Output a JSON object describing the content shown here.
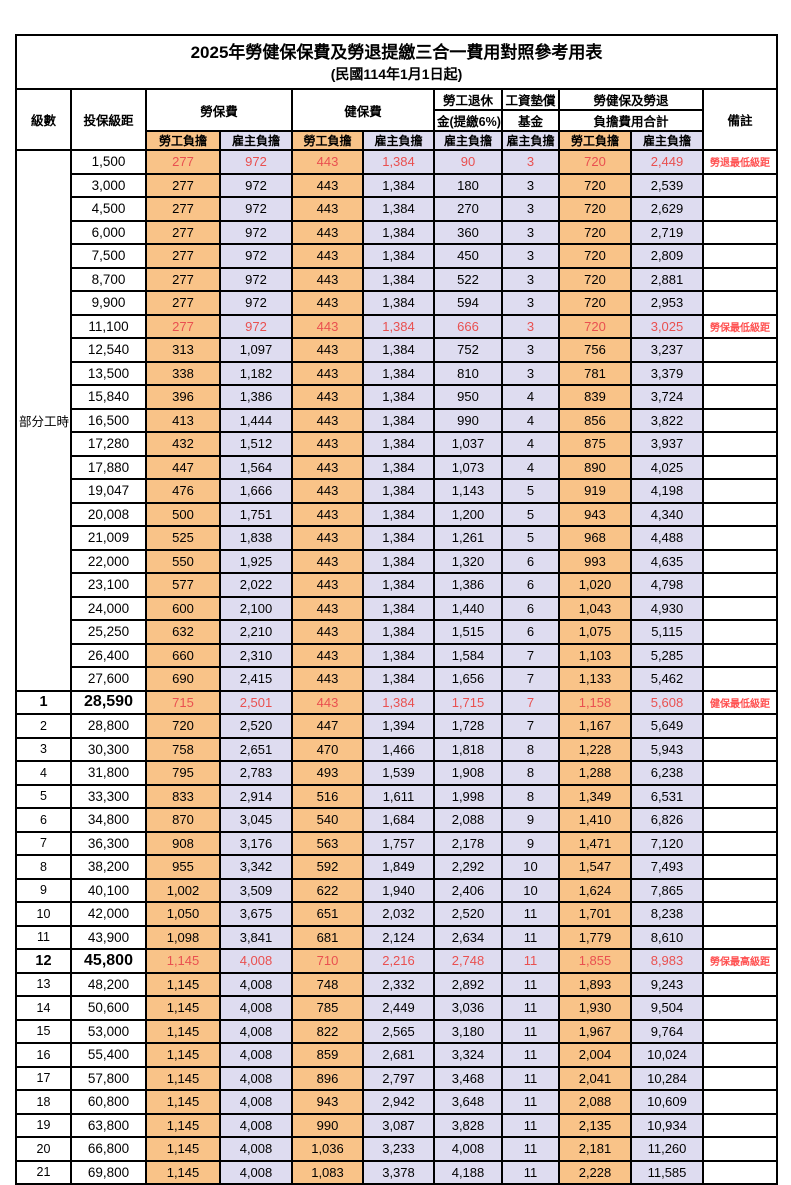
{
  "title": "2025年勞健保保費及勞退提繳三合一費用對照參考用表",
  "subtitle": "(民國114年1月1日起)",
  "colors": {
    "employee_bg": "#F9C388",
    "employer_bg": "#DEDCF0",
    "highlight_text": "#E95050",
    "remark_text": "#FF5151",
    "border": "#000000"
  },
  "header": {
    "level": "級數",
    "bracket": "投保級距",
    "labor_ins": "勞保費",
    "health_ins": "健保費",
    "pension_line1": "勞工退休",
    "pension_line2": "金(提繳6%)",
    "wage_fund_line1": "工資墊償",
    "wage_fund_line2": "基金",
    "total_line1": "勞健保及勞退",
    "total_line2": "負擔費用合計",
    "remark": "備註",
    "employee": "勞工負擔",
    "employer": "雇主負擔"
  },
  "part_time_label": "部分工時",
  "part_time_rowspan": 23,
  "rows": [
    {
      "level": "",
      "bracket": "1,500",
      "values": [
        "277",
        "972",
        "443",
        "1,384",
        "90",
        "3",
        "720",
        "2,449"
      ],
      "remark": "勞退最低級距",
      "red": true,
      "big": false
    },
    {
      "level": "",
      "bracket": "3,000",
      "values": [
        "277",
        "972",
        "443",
        "1,384",
        "180",
        "3",
        "720",
        "2,539"
      ],
      "remark": "",
      "red": false,
      "big": false
    },
    {
      "level": "",
      "bracket": "4,500",
      "values": [
        "277",
        "972",
        "443",
        "1,384",
        "270",
        "3",
        "720",
        "2,629"
      ],
      "remark": "",
      "red": false,
      "big": false
    },
    {
      "level": "",
      "bracket": "6,000",
      "values": [
        "277",
        "972",
        "443",
        "1,384",
        "360",
        "3",
        "720",
        "2,719"
      ],
      "remark": "",
      "red": false,
      "big": false
    },
    {
      "level": "",
      "bracket": "7,500",
      "values": [
        "277",
        "972",
        "443",
        "1,384",
        "450",
        "3",
        "720",
        "2,809"
      ],
      "remark": "",
      "red": false,
      "big": false
    },
    {
      "level": "",
      "bracket": "8,700",
      "values": [
        "277",
        "972",
        "443",
        "1,384",
        "522",
        "3",
        "720",
        "2,881"
      ],
      "remark": "",
      "red": false,
      "big": false
    },
    {
      "level": "",
      "bracket": "9,900",
      "values": [
        "277",
        "972",
        "443",
        "1,384",
        "594",
        "3",
        "720",
        "2,953"
      ],
      "remark": "",
      "red": false,
      "big": false
    },
    {
      "level": "",
      "bracket": "11,100",
      "values": [
        "277",
        "972",
        "443",
        "1,384",
        "666",
        "3",
        "720",
        "3,025"
      ],
      "remark": "勞保最低級距",
      "red": true,
      "big": false
    },
    {
      "level": "",
      "bracket": "12,540",
      "values": [
        "313",
        "1,097",
        "443",
        "1,384",
        "752",
        "3",
        "756",
        "3,237"
      ],
      "remark": "",
      "red": false,
      "big": false
    },
    {
      "level": "",
      "bracket": "13,500",
      "values": [
        "338",
        "1,182",
        "443",
        "1,384",
        "810",
        "3",
        "781",
        "3,379"
      ],
      "remark": "",
      "red": false,
      "big": false
    },
    {
      "level": "",
      "bracket": "15,840",
      "values": [
        "396",
        "1,386",
        "443",
        "1,384",
        "950",
        "4",
        "839",
        "3,724"
      ],
      "remark": "",
      "red": false,
      "big": false
    },
    {
      "level": "",
      "bracket": "16,500",
      "values": [
        "413",
        "1,444",
        "443",
        "1,384",
        "990",
        "4",
        "856",
        "3,822"
      ],
      "remark": "",
      "red": false,
      "big": false
    },
    {
      "level": "",
      "bracket": "17,280",
      "values": [
        "432",
        "1,512",
        "443",
        "1,384",
        "1,037",
        "4",
        "875",
        "3,937"
      ],
      "remark": "",
      "red": false,
      "big": false
    },
    {
      "level": "",
      "bracket": "17,880",
      "values": [
        "447",
        "1,564",
        "443",
        "1,384",
        "1,073",
        "4",
        "890",
        "4,025"
      ],
      "remark": "",
      "red": false,
      "big": false
    },
    {
      "level": "",
      "bracket": "19,047",
      "values": [
        "476",
        "1,666",
        "443",
        "1,384",
        "1,143",
        "5",
        "919",
        "4,198"
      ],
      "remark": "",
      "red": false,
      "big": false
    },
    {
      "level": "",
      "bracket": "20,008",
      "values": [
        "500",
        "1,751",
        "443",
        "1,384",
        "1,200",
        "5",
        "943",
        "4,340"
      ],
      "remark": "",
      "red": false,
      "big": false
    },
    {
      "level": "",
      "bracket": "21,009",
      "values": [
        "525",
        "1,838",
        "443",
        "1,384",
        "1,261",
        "5",
        "968",
        "4,488"
      ],
      "remark": "",
      "red": false,
      "big": false
    },
    {
      "level": "",
      "bracket": "22,000",
      "values": [
        "550",
        "1,925",
        "443",
        "1,384",
        "1,320",
        "6",
        "993",
        "4,635"
      ],
      "remark": "",
      "red": false,
      "big": false
    },
    {
      "level": "",
      "bracket": "23,100",
      "values": [
        "577",
        "2,022",
        "443",
        "1,384",
        "1,386",
        "6",
        "1,020",
        "4,798"
      ],
      "remark": "",
      "red": false,
      "big": false
    },
    {
      "level": "",
      "bracket": "24,000",
      "values": [
        "600",
        "2,100",
        "443",
        "1,384",
        "1,440",
        "6",
        "1,043",
        "4,930"
      ],
      "remark": "",
      "red": false,
      "big": false
    },
    {
      "level": "",
      "bracket": "25,250",
      "values": [
        "632",
        "2,210",
        "443",
        "1,384",
        "1,515",
        "6",
        "1,075",
        "5,115"
      ],
      "remark": "",
      "red": false,
      "big": false
    },
    {
      "level": "",
      "bracket": "26,400",
      "values": [
        "660",
        "2,310",
        "443",
        "1,384",
        "1,584",
        "7",
        "1,103",
        "5,285"
      ],
      "remark": "",
      "red": false,
      "big": false
    },
    {
      "level": "",
      "bracket": "27,600",
      "values": [
        "690",
        "2,415",
        "443",
        "1,384",
        "1,656",
        "7",
        "1,133",
        "5,462"
      ],
      "remark": "",
      "red": false,
      "big": false
    },
    {
      "level": "1",
      "bracket": "28,590",
      "values": [
        "715",
        "2,501",
        "443",
        "1,384",
        "1,715",
        "7",
        "1,158",
        "5,608"
      ],
      "remark": "健保最低級距",
      "red": true,
      "big": true
    },
    {
      "level": "2",
      "bracket": "28,800",
      "values": [
        "720",
        "2,520",
        "447",
        "1,394",
        "1,728",
        "7",
        "1,167",
        "5,649"
      ],
      "remark": "",
      "red": false,
      "big": false
    },
    {
      "level": "3",
      "bracket": "30,300",
      "values": [
        "758",
        "2,651",
        "470",
        "1,466",
        "1,818",
        "8",
        "1,228",
        "5,943"
      ],
      "remark": "",
      "red": false,
      "big": false
    },
    {
      "level": "4",
      "bracket": "31,800",
      "values": [
        "795",
        "2,783",
        "493",
        "1,539",
        "1,908",
        "8",
        "1,288",
        "6,238"
      ],
      "remark": "",
      "red": false,
      "big": false
    },
    {
      "level": "5",
      "bracket": "33,300",
      "values": [
        "833",
        "2,914",
        "516",
        "1,611",
        "1,998",
        "8",
        "1,349",
        "6,531"
      ],
      "remark": "",
      "red": false,
      "big": false
    },
    {
      "level": "6",
      "bracket": "34,800",
      "values": [
        "870",
        "3,045",
        "540",
        "1,684",
        "2,088",
        "9",
        "1,410",
        "6,826"
      ],
      "remark": "",
      "red": false,
      "big": false
    },
    {
      "level": "7",
      "bracket": "36,300",
      "values": [
        "908",
        "3,176",
        "563",
        "1,757",
        "2,178",
        "9",
        "1,471",
        "7,120"
      ],
      "remark": "",
      "red": false,
      "big": false
    },
    {
      "level": "8",
      "bracket": "38,200",
      "values": [
        "955",
        "3,342",
        "592",
        "1,849",
        "2,292",
        "10",
        "1,547",
        "7,493"
      ],
      "remark": "",
      "red": false,
      "big": false
    },
    {
      "level": "9",
      "bracket": "40,100",
      "values": [
        "1,002",
        "3,509",
        "622",
        "1,940",
        "2,406",
        "10",
        "1,624",
        "7,865"
      ],
      "remark": "",
      "red": false,
      "big": false
    },
    {
      "level": "10",
      "bracket": "42,000",
      "values": [
        "1,050",
        "3,675",
        "651",
        "2,032",
        "2,520",
        "11",
        "1,701",
        "8,238"
      ],
      "remark": "",
      "red": false,
      "big": false
    },
    {
      "level": "11",
      "bracket": "43,900",
      "values": [
        "1,098",
        "3,841",
        "681",
        "2,124",
        "2,634",
        "11",
        "1,779",
        "8,610"
      ],
      "remark": "",
      "red": false,
      "big": false
    },
    {
      "level": "12",
      "bracket": "45,800",
      "values": [
        "1,145",
        "4,008",
        "710",
        "2,216",
        "2,748",
        "11",
        "1,855",
        "8,983"
      ],
      "remark": "勞保最高級距",
      "red": true,
      "big": true
    },
    {
      "level": "13",
      "bracket": "48,200",
      "values": [
        "1,145",
        "4,008",
        "748",
        "2,332",
        "2,892",
        "11",
        "1,893",
        "9,243"
      ],
      "remark": "",
      "red": false,
      "big": false
    },
    {
      "level": "14",
      "bracket": "50,600",
      "values": [
        "1,145",
        "4,008",
        "785",
        "2,449",
        "3,036",
        "11",
        "1,930",
        "9,504"
      ],
      "remark": "",
      "red": false,
      "big": false
    },
    {
      "level": "15",
      "bracket": "53,000",
      "values": [
        "1,145",
        "4,008",
        "822",
        "2,565",
        "3,180",
        "11",
        "1,967",
        "9,764"
      ],
      "remark": "",
      "red": false,
      "big": false
    },
    {
      "level": "16",
      "bracket": "55,400",
      "values": [
        "1,145",
        "4,008",
        "859",
        "2,681",
        "3,324",
        "11",
        "2,004",
        "10,024"
      ],
      "remark": "",
      "red": false,
      "big": false
    },
    {
      "level": "17",
      "bracket": "57,800",
      "values": [
        "1,145",
        "4,008",
        "896",
        "2,797",
        "3,468",
        "11",
        "2,041",
        "10,284"
      ],
      "remark": "",
      "red": false,
      "big": false
    },
    {
      "level": "18",
      "bracket": "60,800",
      "values": [
        "1,145",
        "4,008",
        "943",
        "2,942",
        "3,648",
        "11",
        "2,088",
        "10,609"
      ],
      "remark": "",
      "red": false,
      "big": false
    },
    {
      "level": "19",
      "bracket": "63,800",
      "values": [
        "1,145",
        "4,008",
        "990",
        "3,087",
        "3,828",
        "11",
        "2,135",
        "10,934"
      ],
      "remark": "",
      "red": false,
      "big": false
    },
    {
      "level": "20",
      "bracket": "66,800",
      "values": [
        "1,145",
        "4,008",
        "1,036",
        "3,233",
        "4,008",
        "11",
        "2,181",
        "11,260"
      ],
      "remark": "",
      "red": false,
      "big": false
    },
    {
      "level": "21",
      "bracket": "69,800",
      "values": [
        "1,145",
        "4,008",
        "1,083",
        "3,378",
        "4,188",
        "11",
        "2,228",
        "11,585"
      ],
      "remark": "",
      "red": false,
      "big": false
    }
  ]
}
